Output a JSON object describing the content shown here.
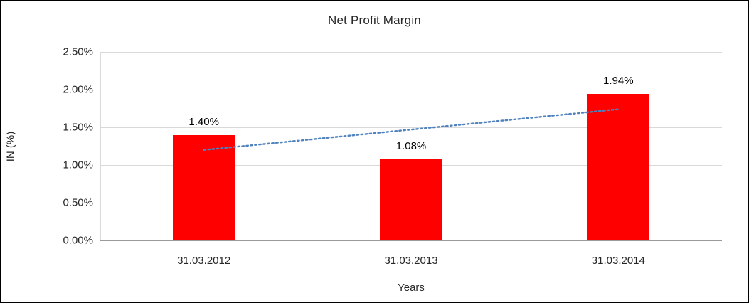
{
  "chart_data": {
    "type": "bar",
    "title": "Net Profit Margin",
    "categories": [
      "31.03.2012",
      "31.03.2013",
      "31.03.2014"
    ],
    "values": [
      1.4,
      1.08,
      1.94
    ],
    "value_labels": [
      "1.40%",
      "1.08%",
      "1.94%"
    ],
    "xlabel": "Years",
    "ylabel": "IN (%)",
    "ylim": [
      0,
      2.5
    ],
    "ytick_step": 0.5,
    "yticks": [
      "0.00%",
      "0.50%",
      "1.00%",
      "1.50%",
      "2.00%",
      "2.50%"
    ],
    "bar_color": "#ff0000",
    "grid": true,
    "legend": "none",
    "trendline": {
      "style": "dotted",
      "color": "#4f81bd",
      "start_value": 1.2,
      "end_value": 1.74
    }
  }
}
